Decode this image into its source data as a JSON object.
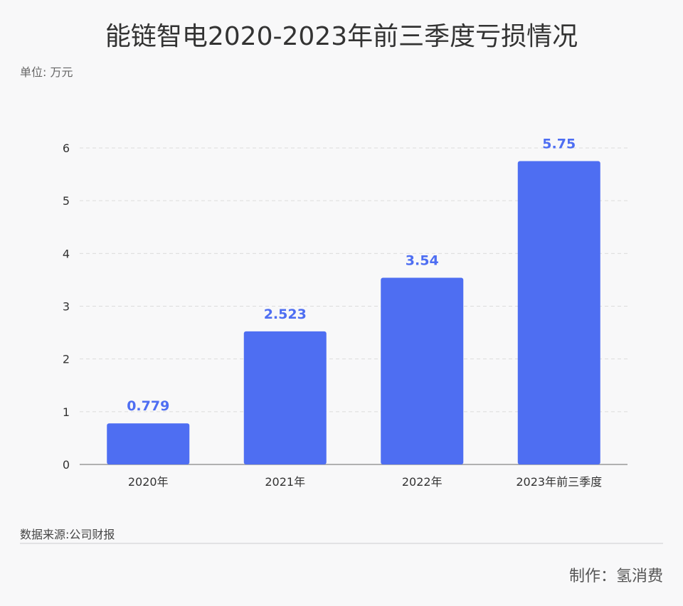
{
  "title": "能链智电2020-2023年前三季度亏损情况",
  "unit_label": "单位: 万元",
  "source_label": "数据来源:公司财报",
  "maker_label": "制作：氢消费",
  "colors": {
    "bar": "#4e6ef2",
    "label": "#4e6ef2",
    "grid": "#dcdcdc",
    "axis": "#999999"
  },
  "chart_data": {
    "type": "bar",
    "categories": [
      "2020年",
      "2021年",
      "2022年",
      "2023年前三季度"
    ],
    "values": [
      0.779,
      2.523,
      3.54,
      5.75
    ],
    "data_labels": [
      "0.779",
      "2.523",
      "3.54",
      "5.75"
    ],
    "yticks": [
      0,
      1,
      2,
      3,
      4,
      5,
      6
    ],
    "ylim": [
      0,
      6
    ],
    "grid": true,
    "legend": "none"
  }
}
